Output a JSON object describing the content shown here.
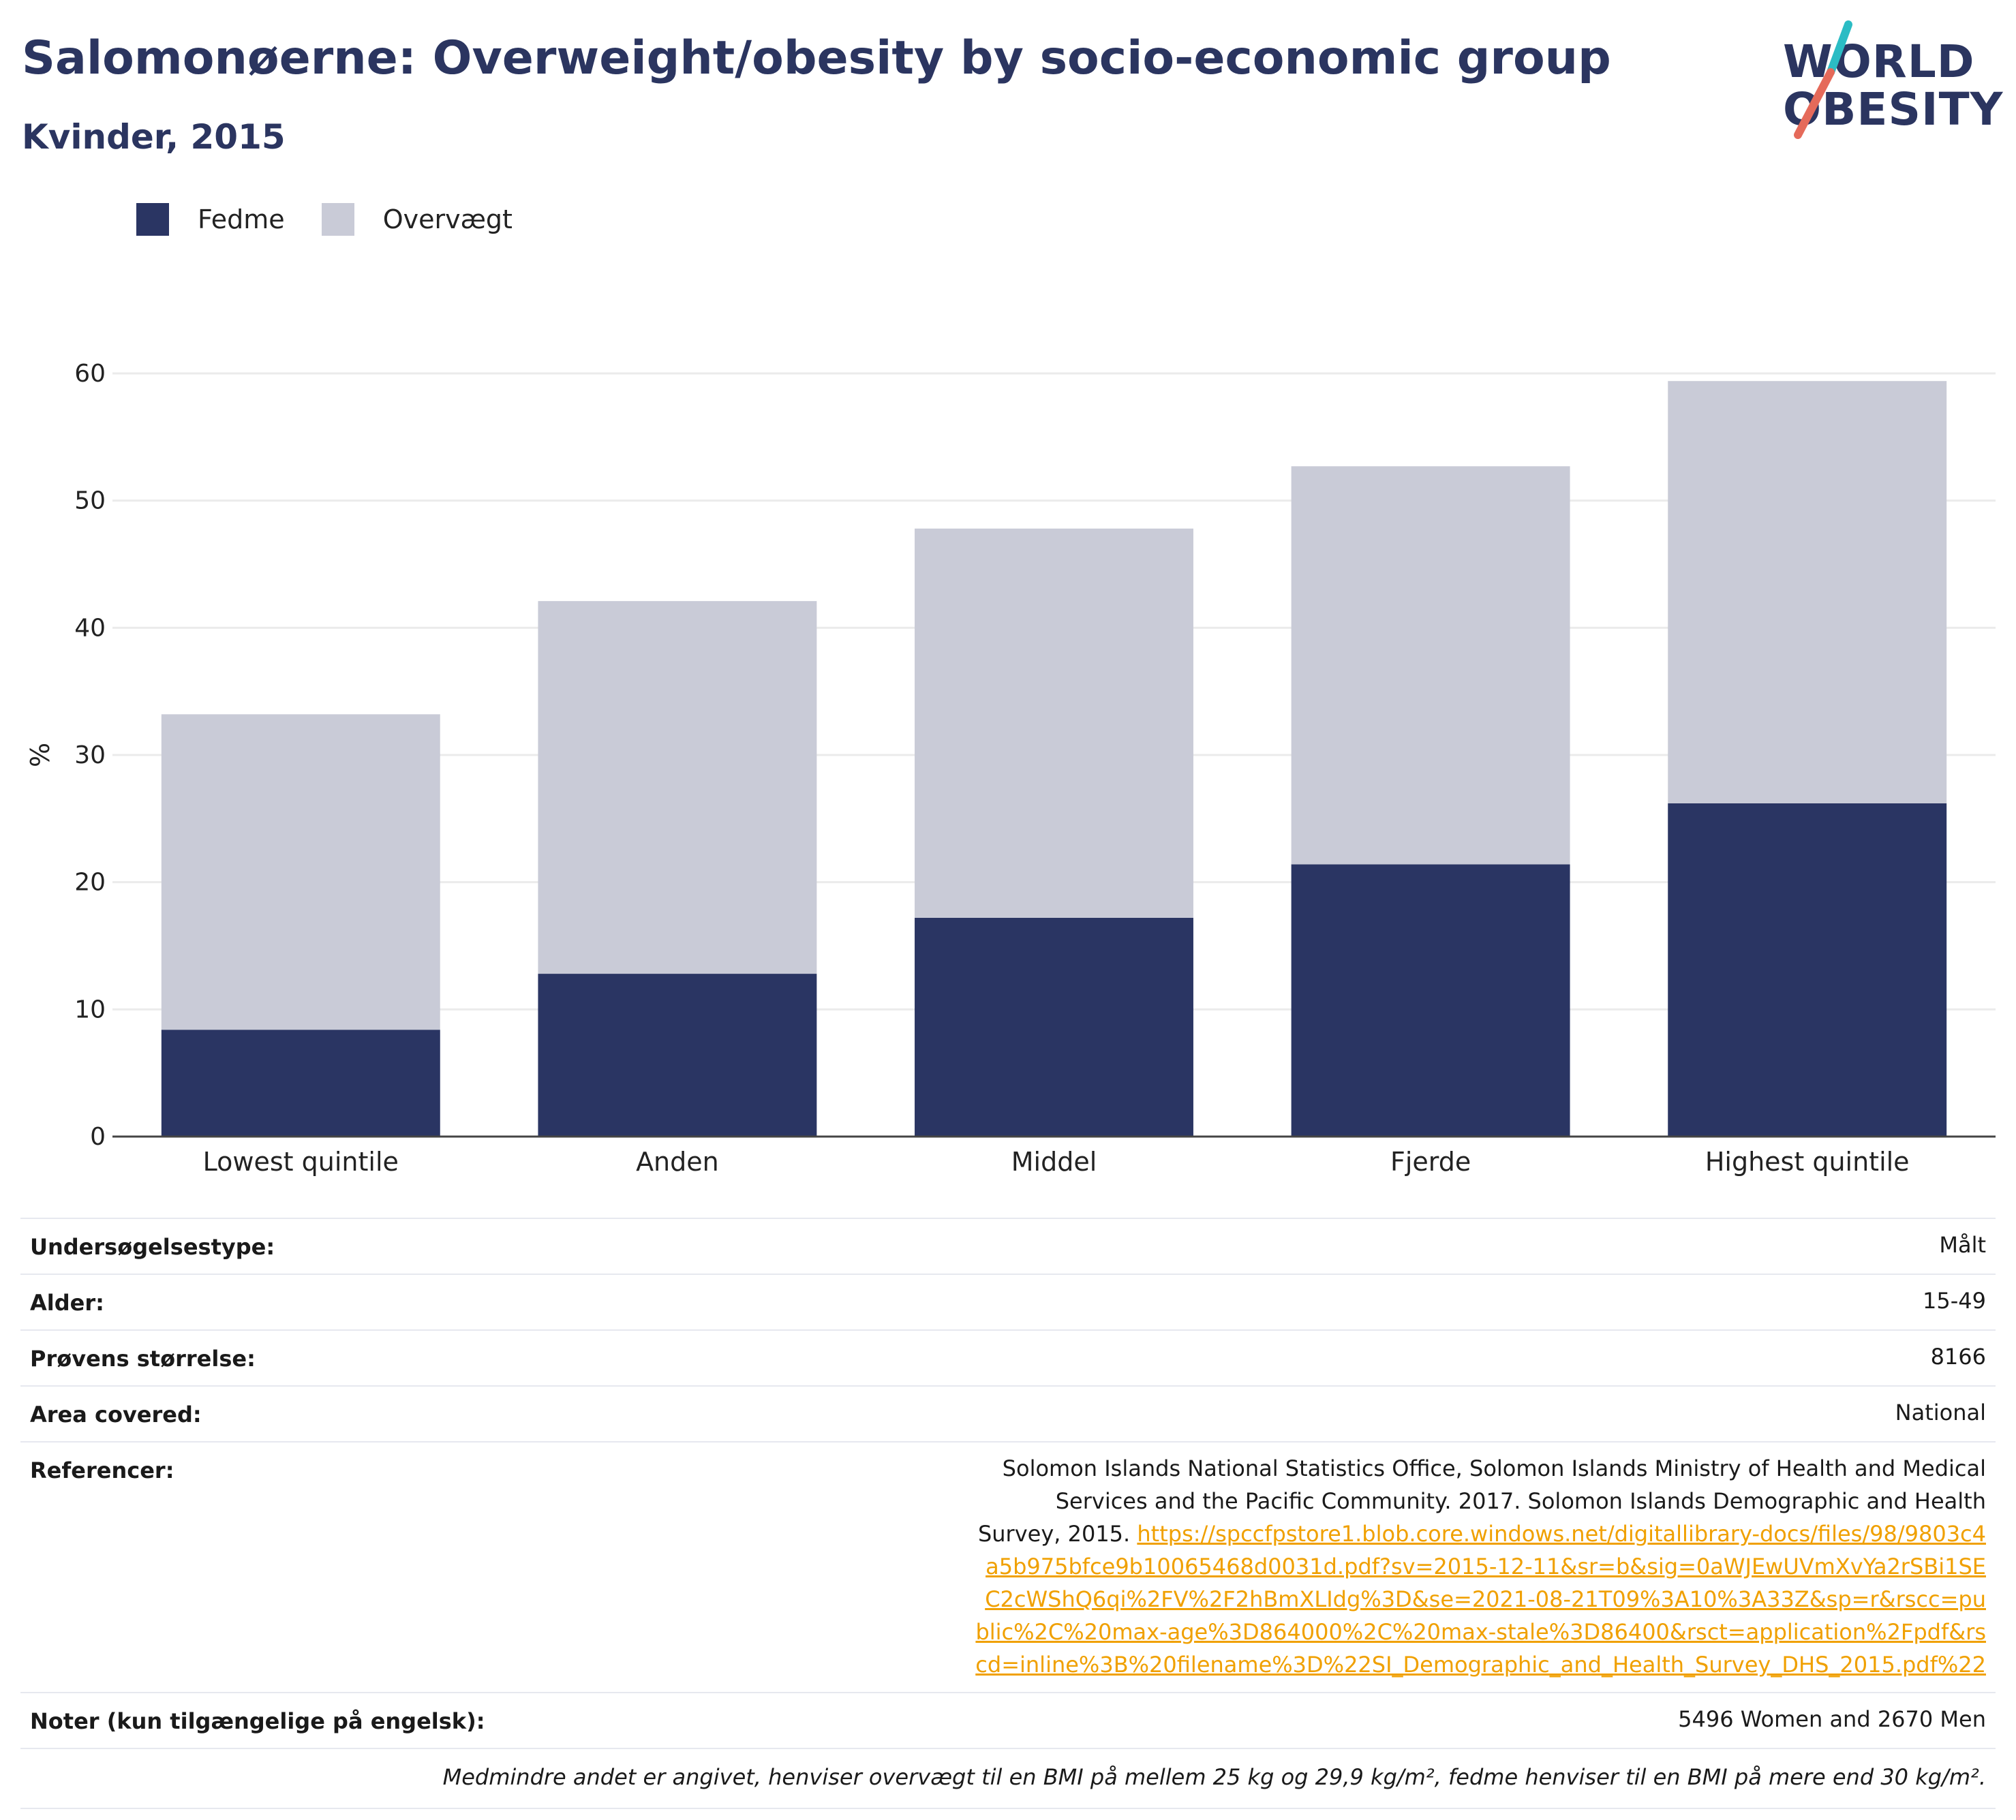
{
  "title": "Salomonøerne: Overweight/obesity by socio-economic group",
  "subtitle": "Kvinder, 2015",
  "logo": {
    "line1": "WORLD",
    "line2": "OBESITY",
    "slash_colors": [
      "#2bbcc4",
      "#e56a5a"
    ]
  },
  "chart_data": {
    "type": "bar",
    "stacked": true,
    "categories": [
      "Lowest quintile",
      "Anden",
      "Middel",
      "Fjerde",
      "Highest quintile"
    ],
    "series": [
      {
        "name": "Fedme",
        "color": "#2a3563",
        "values": [
          8.4,
          12.8,
          17.2,
          21.4,
          26.2
        ]
      },
      {
        "name": "Overvægt",
        "color": "#c9cbd7",
        "values": [
          24.8,
          29.3,
          30.6,
          31.3,
          33.2
        ]
      }
    ],
    "ylabel": "%",
    "ylim": [
      0,
      60
    ],
    "yticks": [
      0,
      10,
      20,
      30,
      40,
      50,
      60
    ],
    "grid": true,
    "legend_position": "top-left"
  },
  "info": {
    "survey_type": {
      "label": "Undersøgelsestype:",
      "value": "Målt"
    },
    "age": {
      "label": "Alder:",
      "value": "15-49"
    },
    "sample_size": {
      "label": "Prøvens størrelse:",
      "value": "8166"
    },
    "area": {
      "label": "Area covered:",
      "value": "National"
    },
    "references": {
      "label": "Referencer:",
      "text": "Solomon Islands National Statistics Office, Solomon Islands Ministry of Health and Medical Services and the Pacific Community. 2017. Solomon Islands Demographic and Health Survey, 2015.",
      "link": "https://spccfpstore1.blob.core.windows.net/digitallibrary-docs/files/98/9803c4a5b975bfce9b10065468d0031d.pdf?sv=2015-12-11&sr=b&sig=0aWJEwUVmXvYa2rSBi1SEC2cWShQ6qi%2FV%2F2hBmXLIdg%3D&se=2021-08-21T09%3A10%3A33Z&sp=r&rscc=public%2C%20max-age%3D864000%2C%20max-stale%3D86400&rsct=application%2Fpdf&rscd=inline%3B%20filename%3D%22SI_Demographic_and_Health_Survey_DHS_2015.pdf%22"
    },
    "notes": {
      "label": "Noter (kun tilgængelige på engelsk):",
      "value": "5496 Women and 2670 Men"
    },
    "footnote": "Medmindre andet er angivet, henviser overvægt til en BMI på mellem 25 kg og 29,9 kg/m², fedme henviser til en BMI på mere end 30 kg/m²."
  }
}
